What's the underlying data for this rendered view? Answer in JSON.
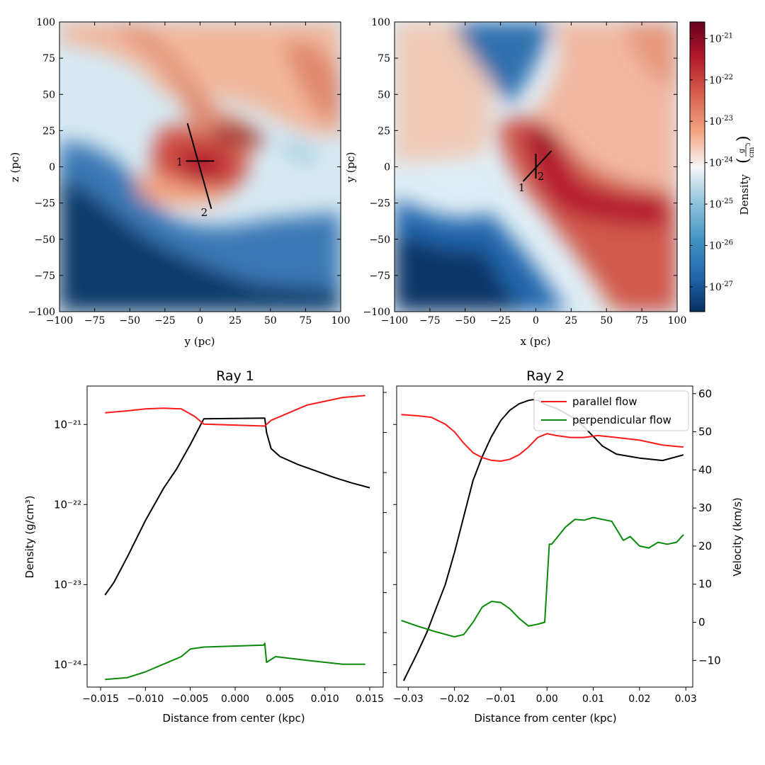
{
  "colors": {
    "density_black": "#000000",
    "parallel": "#ff1a1a",
    "perpendicular": "#0a8a0a",
    "cmap_low": "#053061",
    "cmap_mid": "#f7f7f7",
    "cmap_high": "#67001f"
  },
  "chart_data": [
    {
      "type": "heatmap",
      "id": "map_yz",
      "xlabel": "y (pc)",
      "ylabel": "z (pc)",
      "xlim": [
        -100,
        100
      ],
      "ylim": [
        -100,
        100
      ],
      "xticks": [
        "−100",
        "−75",
        "−50",
        "−25",
        "0",
        "25",
        "50",
        "75",
        "100"
      ],
      "yticks": [
        "−100",
        "−75",
        "−50",
        "−25",
        "0",
        "25",
        "50",
        "75",
        "100"
      ],
      "ray_labels": [
        "1",
        "2"
      ],
      "rays": [
        {
          "label": "1",
          "from": [
            -10,
            4
          ],
          "to": [
            10,
            4
          ]
        },
        {
          "label": "2",
          "from": [
            -9,
            30
          ],
          "to": [
            8,
            -29
          ]
        }
      ]
    },
    {
      "type": "heatmap",
      "id": "map_xy",
      "xlabel": "x (pc)",
      "ylabel": "y (pc)",
      "xlim": [
        -100,
        100
      ],
      "ylim": [
        -100,
        100
      ],
      "xticks": [
        "−100",
        "−75",
        "−50",
        "−25",
        "0",
        "25",
        "50",
        "75",
        "100"
      ],
      "yticks": [
        "−100",
        "−75",
        "−50",
        "−25",
        "0",
        "25",
        "50",
        "75",
        "100"
      ],
      "ray_labels": [
        "1",
        "2"
      ],
      "rays": [
        {
          "label": "1",
          "from": [
            -9,
            -10
          ],
          "to": [
            11,
            11
          ]
        },
        {
          "label": "2",
          "from": [
            0,
            9
          ],
          "to": [
            0,
            -8
          ]
        }
      ],
      "colorbar": {
        "label": "Density",
        "unit_num": "g",
        "unit_den": "cm",
        "unit_den_exp": "3",
        "log_range": [
          -27.6,
          -20.6
        ],
        "tick_exponents": [
          "-21",
          "-22",
          "-23",
          "-24",
          "-25",
          "-26",
          "-27"
        ],
        "tick_base": "10"
      }
    },
    {
      "type": "line",
      "id": "ray1",
      "title": "Ray 1",
      "xlabel": "Distance from center (kpc)",
      "ylabel": "Density (g/cm³)",
      "xlim": [
        -0.0165,
        0.0165
      ],
      "xticks": [
        "−0.015",
        "−0.010",
        "−0.005",
        "0.000",
        "0.005",
        "0.010",
        "0.015"
      ],
      "ylim_log": [
        -24.28,
        -20.52
      ],
      "yticks": [
        "10⁻²¹",
        "10⁻²²",
        "10⁻²³",
        "10⁻²⁴"
      ],
      "velocity_ylim": [
        -17,
        62
      ],
      "series": [
        {
          "name": "density",
          "axis": "left_log",
          "x": [
            -0.0145,
            -0.0135,
            -0.012,
            -0.01,
            -0.008,
            -0.0065,
            -0.005,
            -0.0035,
            0.0033,
            0.0035,
            0.004,
            0.005,
            0.007,
            0.009,
            0.011,
            0.013,
            0.015
          ],
          "y": [
            -23.13,
            -22.97,
            -22.65,
            -22.2,
            -21.8,
            -21.55,
            -21.25,
            -20.93,
            -20.92,
            -21.1,
            -21.3,
            -21.4,
            -21.5,
            -21.58,
            -21.66,
            -21.73,
            -21.79
          ]
        },
        {
          "name": "parallel flow",
          "axis": "right_linear",
          "x": [
            -0.0145,
            -0.012,
            -0.01,
            -0.008,
            -0.006,
            -0.0045,
            -0.0035,
            0.0033,
            0.004,
            0.006,
            0.008,
            0.01,
            0.012,
            0.0145
          ],
          "y": [
            55,
            55.5,
            56,
            56.2,
            56,
            54,
            52,
            51.5,
            53,
            55,
            57,
            58,
            59,
            59.5
          ]
        },
        {
          "name": "perpendicular flow",
          "axis": "right_linear",
          "x": [
            -0.0145,
            -0.012,
            -0.01,
            -0.008,
            -0.006,
            -0.005,
            -0.0035,
            0.0032,
            0.0033,
            0.0035,
            0.0045,
            0.008,
            0.012,
            0.0145
          ],
          "y": [
            -15,
            -14.5,
            -13,
            -11,
            -9,
            -7,
            -6.5,
            -6,
            -5.5,
            -10.5,
            -9,
            -10,
            -11,
            -11
          ]
        }
      ]
    },
    {
      "type": "line",
      "id": "ray2",
      "title": "Ray 2",
      "xlabel": "Distance from center (kpc)",
      "ylabel": "Velocity (km/s)",
      "xlim": [
        -0.0325,
        0.0315
      ],
      "xticks": [
        "−0.03",
        "−0.02",
        "−0.01",
        "0.00",
        "0.01",
        "0.02",
        "0.03"
      ],
      "density_ylim_log": [
        -24.28,
        -20.52
      ],
      "velocity_ylim": [
        -17,
        62
      ],
      "yticks_right": [
        "60",
        "50",
        "40",
        "30",
        "20",
        "10",
        "0",
        "−10"
      ],
      "legend": {
        "placement": "top-right",
        "entries": [
          "parallel flow",
          "perpendicular flow"
        ]
      },
      "series": [
        {
          "name": "density",
          "axis": "left_log",
          "x": [
            -0.031,
            -0.028,
            -0.026,
            -0.024,
            -0.022,
            -0.02,
            -0.018,
            -0.016,
            -0.014,
            -0.012,
            -0.01,
            -0.008,
            -0.006,
            -0.004,
            -0.003,
            -0.002,
            0.0,
            0.002,
            0.004,
            0.006,
            0.008,
            0.01,
            0.012,
            0.015,
            0.02,
            0.025,
            0.0295
          ],
          "y": [
            -24.2,
            -23.85,
            -23.6,
            -23.3,
            -23.0,
            -22.6,
            -22.15,
            -21.7,
            -21.4,
            -21.15,
            -20.95,
            -20.82,
            -20.74,
            -20.7,
            -20.69,
            -20.7,
            -20.76,
            -20.8,
            -20.86,
            -20.93,
            -21.03,
            -21.15,
            -21.27,
            -21.37,
            -21.42,
            -21.45,
            -21.38
          ]
        },
        {
          "name": "parallel flow",
          "axis": "right_linear",
          "x": [
            -0.0315,
            -0.028,
            -0.025,
            -0.022,
            -0.02,
            -0.018,
            -0.016,
            -0.014,
            -0.012,
            -0.01,
            -0.008,
            -0.006,
            -0.004,
            -0.002,
            0.0,
            0.002,
            0.005,
            0.008,
            0.011,
            0.015,
            0.02,
            0.025,
            0.0295
          ],
          "y": [
            54.5,
            54.2,
            53.8,
            52,
            50,
            47,
            44.5,
            43.2,
            42.5,
            42.3,
            42.8,
            44,
            46,
            48.5,
            49.5,
            49,
            48.5,
            48.5,
            49,
            48.5,
            47.8,
            46.5,
            46
          ]
        },
        {
          "name": "perpendicular flow",
          "axis": "right_linear",
          "x": [
            -0.0315,
            -0.028,
            -0.024,
            -0.02,
            -0.018,
            -0.016,
            -0.014,
            -0.012,
            -0.01,
            -0.008,
            -0.006,
            -0.004,
            -0.002,
            -0.0005,
            0.0005,
            0.001,
            0.002,
            0.004,
            0.006,
            0.008,
            0.01,
            0.012,
            0.014,
            0.0165,
            0.018,
            0.02,
            0.022,
            0.024,
            0.026,
            0.028,
            0.0295
          ],
          "y": [
            0.5,
            -1,
            -2.5,
            -3.8,
            -3.2,
            0,
            4,
            5.5,
            5.2,
            3.5,
            1,
            -1,
            -0.5,
            0,
            20.5,
            20.5,
            22,
            25,
            27,
            26.8,
            27.5,
            27,
            26.5,
            21.5,
            22.5,
            20,
            19.5,
            21,
            20.5,
            21,
            23
          ]
        }
      ]
    }
  ]
}
